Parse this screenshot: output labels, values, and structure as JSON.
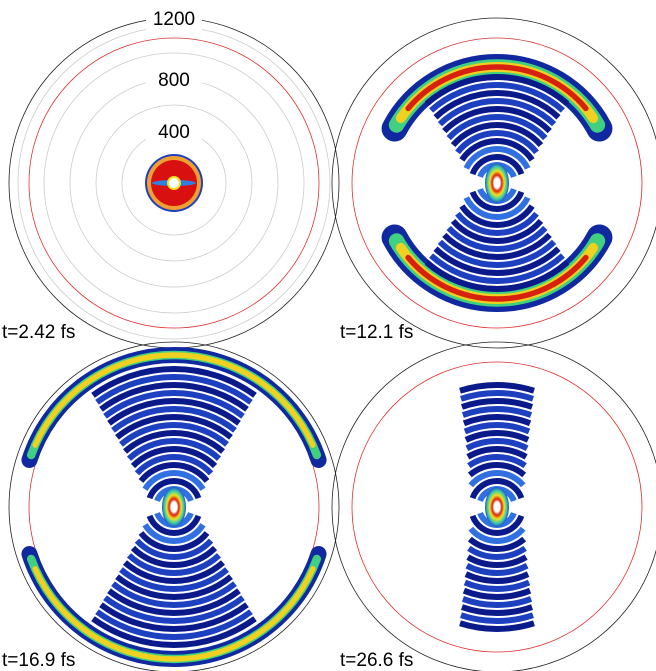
{
  "ring_labels": [
    "1200",
    "800",
    "400"
  ],
  "panels": [
    {
      "label": "t=2.42 fs"
    },
    {
      "label": "t=12.1 fs"
    },
    {
      "label": "t=16.9 fs"
    },
    {
      "label": "t=26.6 fs"
    }
  ]
}
